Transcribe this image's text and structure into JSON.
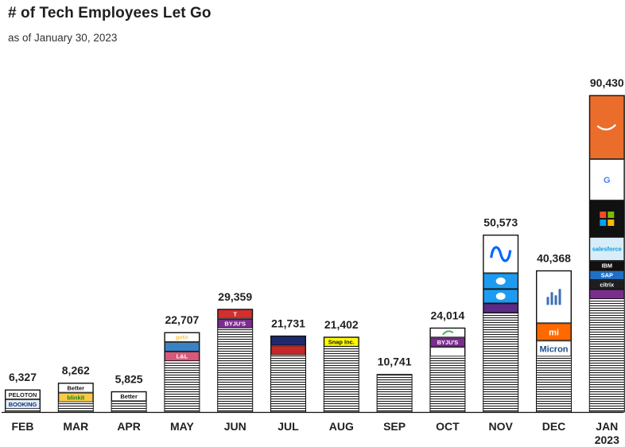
{
  "header": {
    "title": "# of Tech Employees Let Go",
    "subtitle": "as of January 30, 2023"
  },
  "chart_data": {
    "type": "bar",
    "title": "# of Tech Employees Let Go",
    "subtitle": "as of January 30, 2023",
    "xlabel": "",
    "ylabel": "",
    "categories": [
      "FEB",
      "MAR",
      "APR",
      "MAY",
      "JUN",
      "JUL",
      "AUG",
      "SEP",
      "OCT",
      "NOV",
      "DEC",
      "JAN 2023"
    ],
    "values": [
      6327,
      8262,
      5825,
      22707,
      29359,
      21731,
      21402,
      10741,
      24014,
      50573,
      40368,
      90430
    ],
    "value_labels": [
      "6,327",
      "8,262",
      "5,825",
      "22,707",
      "29,359",
      "21,731",
      "21,402",
      "10,741",
      "24,014",
      "50,573",
      "40,368",
      "90,430"
    ],
    "ylim": [
      0,
      90430
    ],
    "grid": false,
    "legend": "none",
    "bar_style": "white bars with dense horizontal black stripes; large contributors shown as company logo tiles stacked at the top",
    "logo_tiles": {
      "FEB": [
        {
          "company": "PELOTON",
          "text": "PELOTON",
          "bg": "#ffffff",
          "fg": "#222222"
        },
        {
          "company": "BOOKING",
          "text": "BOOKING",
          "bg": "#e8eef5",
          "fg": "#003580"
        }
      ],
      "MAR": [
        {
          "company": "Better",
          "text": "Better",
          "bg": "#ffffff",
          "fg": "#111111"
        },
        {
          "company": "blinkit",
          "text": "blinkit",
          "bg": "#f8cb46",
          "fg": "#0c831f"
        }
      ],
      "APR": [
        {
          "company": "Better",
          "text": "Better",
          "bg": "#ffffff",
          "fg": "#111111"
        }
      ],
      "MAY": [
        {
          "company": "getir",
          "text": "getir",
          "bg": "#ffffff",
          "fg": "#f2c94c"
        },
        {
          "company": "car-logo",
          "text": "",
          "bg": "#3b82c4",
          "fg": "#ffffff"
        },
        {
          "company": "logo",
          "text": "L&L",
          "bg": "#d9577a",
          "fg": "#ffffff"
        }
      ],
      "JUN": [
        {
          "company": "Tesla",
          "text": "T",
          "bg": "#d32f2f",
          "fg": "#ffffff"
        },
        {
          "company": "BYJU'S",
          "text": "BYJU'S",
          "bg": "#7b2d8e",
          "fg": "#ffffff"
        }
      ],
      "JUL": [
        {
          "company": "logo",
          "text": "",
          "bg": "#1d2a6b",
          "fg": "#ffffff"
        },
        {
          "company": "logo",
          "text": "",
          "bg": "#c62828",
          "fg": "#ffffff"
        }
      ],
      "AUG": [
        {
          "company": "Snap Inc.",
          "text": "Snap Inc.",
          "bg": "#fffc00",
          "fg": "#111111"
        }
      ],
      "SEP": [],
      "OCT": [
        {
          "company": "Gupshup",
          "text": "",
          "bg": "#ffffff",
          "fg": "#4caf50"
        },
        {
          "company": "BYJU'S",
          "text": "BYJU'S",
          "bg": "#7b2d8e",
          "fg": "#ffffff"
        },
        {
          "company": "logo",
          "text": "",
          "bg": "#ffffff",
          "fg": "#e0701e"
        }
      ],
      "NOV": [
        {
          "company": "Meta",
          "text": "",
          "bg": "#ffffff",
          "fg": "#0866ff"
        },
        {
          "company": "Twitter",
          "text": "",
          "bg": "#1d9bf0",
          "fg": "#ffffff"
        },
        {
          "company": "Twitter",
          "text": "",
          "bg": "#1d9bf0",
          "fg": "#ffffff"
        },
        {
          "company": "logo",
          "text": "",
          "bg": "#5b2a86",
          "fg": "#ffffff"
        }
      ],
      "DEC": [
        {
          "company": "chart-logo",
          "text": "",
          "bg": "#ffffff",
          "fg": "#3b6fb6"
        },
        {
          "company": "Xiaomi",
          "text": "mi",
          "bg": "#ff6900",
          "fg": "#ffffff"
        },
        {
          "company": "Micron",
          "text": "Micron",
          "bg": "#ffffff",
          "fg": "#1b4d89"
        }
      ],
      "JAN 2023": [
        {
          "company": "Amazon",
          "text": "",
          "bg": "#ea6d2c",
          "fg": "#ffffff"
        },
        {
          "company": "Google",
          "text": "G",
          "bg": "#ffffff",
          "fg": "#4285f4"
        },
        {
          "company": "Microsoft",
          "text": "",
          "bg": "#111111",
          "fg": "#ffffff"
        },
        {
          "company": "Salesforce",
          "text": "salesforce",
          "bg": "#d9ecf9",
          "fg": "#00a1e0"
        },
        {
          "company": "IBM",
          "text": "IBM",
          "bg": "#111111",
          "fg": "#ffffff"
        },
        {
          "company": "SAP",
          "text": "SAP",
          "bg": "#1f6fc5",
          "fg": "#ffffff"
        },
        {
          "company": "citrix",
          "text": "citrix",
          "bg": "#1e1e1e",
          "fg": "#ffffff"
        },
        {
          "company": "logo",
          "text": "",
          "bg": "#7a2d8c",
          "fg": "#ffffff"
        }
      ]
    }
  }
}
